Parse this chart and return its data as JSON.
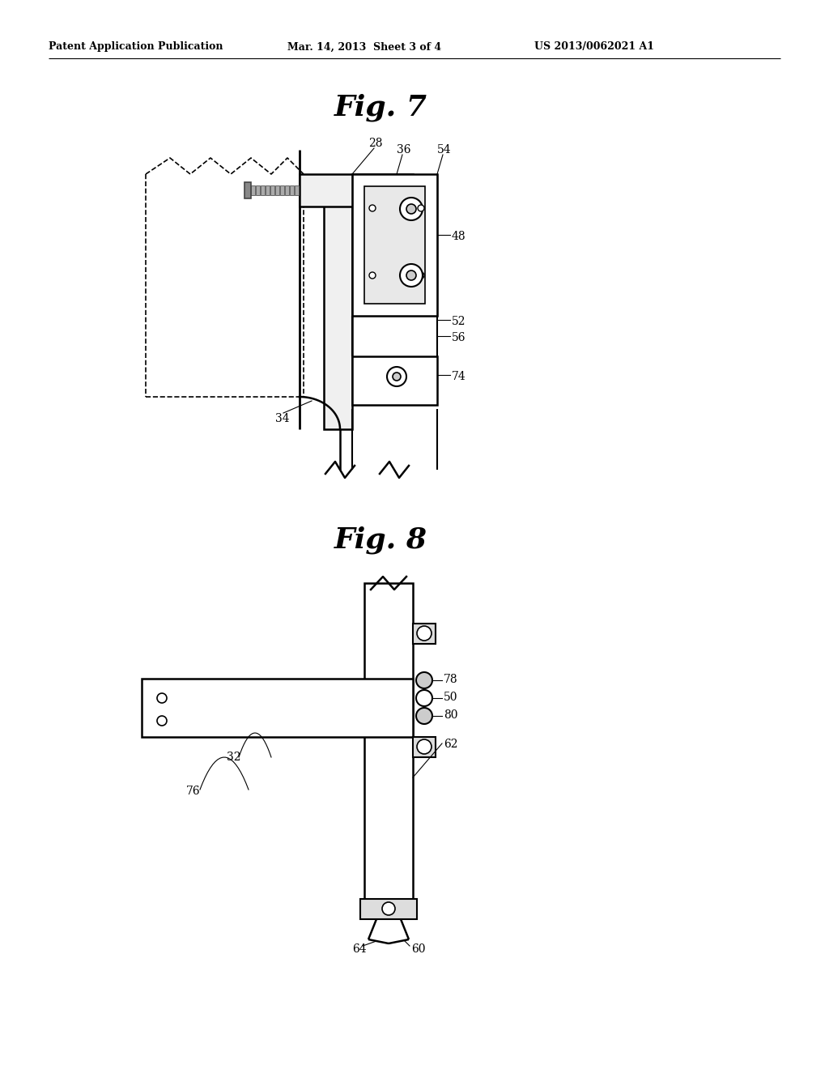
{
  "header_left": "Patent Application Publication",
  "header_center": "Mar. 14, 2013  Sheet 3 of 4",
  "header_right": "US 2013/0062021 A1",
  "fig7_title": "Fig. 7",
  "fig8_title": "Fig. 8",
  "bg_color": "#ffffff",
  "line_color": "#000000"
}
